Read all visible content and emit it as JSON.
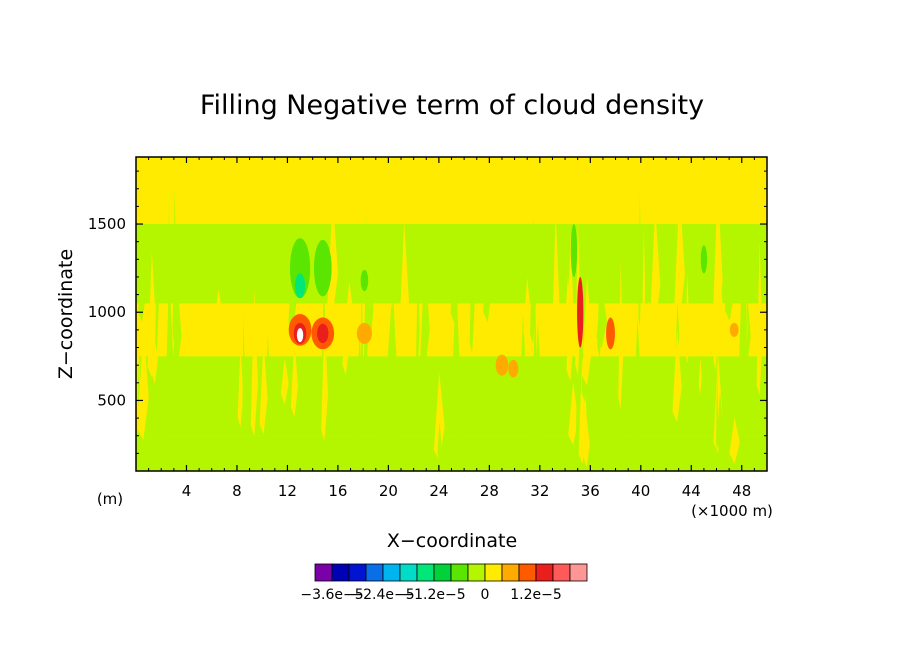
{
  "chart_data": {
    "type": "heatmap",
    "title": "Filling Negative term of cloud density",
    "xlabel": "X−coordinate",
    "ylabel": "Z−coordinate",
    "x_unit_left": "(m)",
    "x_unit_right": "(×1000 m)",
    "xlim": [
      0,
      50
    ],
    "ylim": [
      100,
      1880
    ],
    "x_ticks": [
      4,
      8,
      12,
      16,
      20,
      24,
      28,
      32,
      36,
      40,
      44,
      48
    ],
    "x_tick_labels": [
      "4",
      "8",
      "12",
      "16",
      "20",
      "24",
      "28",
      "32",
      "36",
      "40",
      "44",
      "48"
    ],
    "y_ticks": [
      500,
      1000,
      1500
    ],
    "y_tick_labels": [
      "500",
      "1000",
      "1500"
    ],
    "colorbar": {
      "colors": [
        "#7a00a8",
        "#0000b4",
        "#0014d2",
        "#0a6ee6",
        "#00b4f0",
        "#00dcc8",
        "#00e678",
        "#00d23c",
        "#5ae600",
        "#b4f500",
        "#ffeb00",
        "#ffaa00",
        "#ff5a00",
        "#eb1e1e",
        "#ff5a5a",
        "#ff9696"
      ],
      "tick_labels": [
        "−3.6e−5",
        "−2.4e−5",
        "−1.2e−5",
        "0",
        "1.2e−5"
      ]
    },
    "background_color": "#ffeb00",
    "bands": [
      {
        "y0": 1500,
        "y1": 1050,
        "color": "#b4f500"
      },
      {
        "y0": 950,
        "y1": 750,
        "color": "#ffeb00"
      },
      {
        "y0": 750,
        "y1": 300,
        "color": "#b4f500"
      },
      {
        "y0": 300,
        "y1": 100,
        "color": "#b4f500"
      }
    ],
    "features": [
      {
        "x": 13.0,
        "z": 900,
        "rx": 0.9,
        "rz": 90,
        "color": "#ff5a00"
      },
      {
        "x": 13.0,
        "z": 880,
        "rx": 0.5,
        "rz": 60,
        "color": "#eb1e1e"
      },
      {
        "x": 13.0,
        "z": 870,
        "rx": 0.25,
        "rz": 40,
        "color": "#ffffff"
      },
      {
        "x": 14.8,
        "z": 880,
        "rx": 0.9,
        "rz": 90,
        "color": "#ff5a00"
      },
      {
        "x": 14.8,
        "z": 880,
        "rx": 0.45,
        "rz": 55,
        "color": "#eb1e1e"
      },
      {
        "x": 18.1,
        "z": 880,
        "rx": 0.6,
        "rz": 60,
        "color": "#ffaa00"
      },
      {
        "x": 29.0,
        "z": 700,
        "rx": 0.5,
        "rz": 60,
        "color": "#ffaa00"
      },
      {
        "x": 29.9,
        "z": 680,
        "rx": 0.4,
        "rz": 50,
        "color": "#ffaa00"
      },
      {
        "x": 37.6,
        "z": 880,
        "rx": 0.35,
        "rz": 90,
        "color": "#ff5a00"
      },
      {
        "x": 35.2,
        "z": 1000,
        "rx": 0.25,
        "rz": 200,
        "color": "#eb1e1e"
      },
      {
        "x": 47.4,
        "z": 900,
        "rx": 0.35,
        "rz": 40,
        "color": "#ffaa00"
      },
      {
        "x": 13.0,
        "z": 1250,
        "rx": 0.8,
        "rz": 170,
        "color": "#5ae600"
      },
      {
        "x": 13.0,
        "z": 1150,
        "rx": 0.4,
        "rz": 70,
        "color": "#00e678"
      },
      {
        "x": 14.8,
        "z": 1250,
        "rx": 0.7,
        "rz": 160,
        "color": "#5ae600"
      },
      {
        "x": 18.1,
        "z": 1180,
        "rx": 0.3,
        "rz": 60,
        "color": "#5ae600"
      },
      {
        "x": 34.7,
        "z": 1350,
        "rx": 0.25,
        "rz": 150,
        "color": "#5ae600"
      },
      {
        "x": 45.0,
        "z": 1300,
        "rx": 0.25,
        "rz": 80,
        "color": "#5ae600"
      }
    ]
  }
}
